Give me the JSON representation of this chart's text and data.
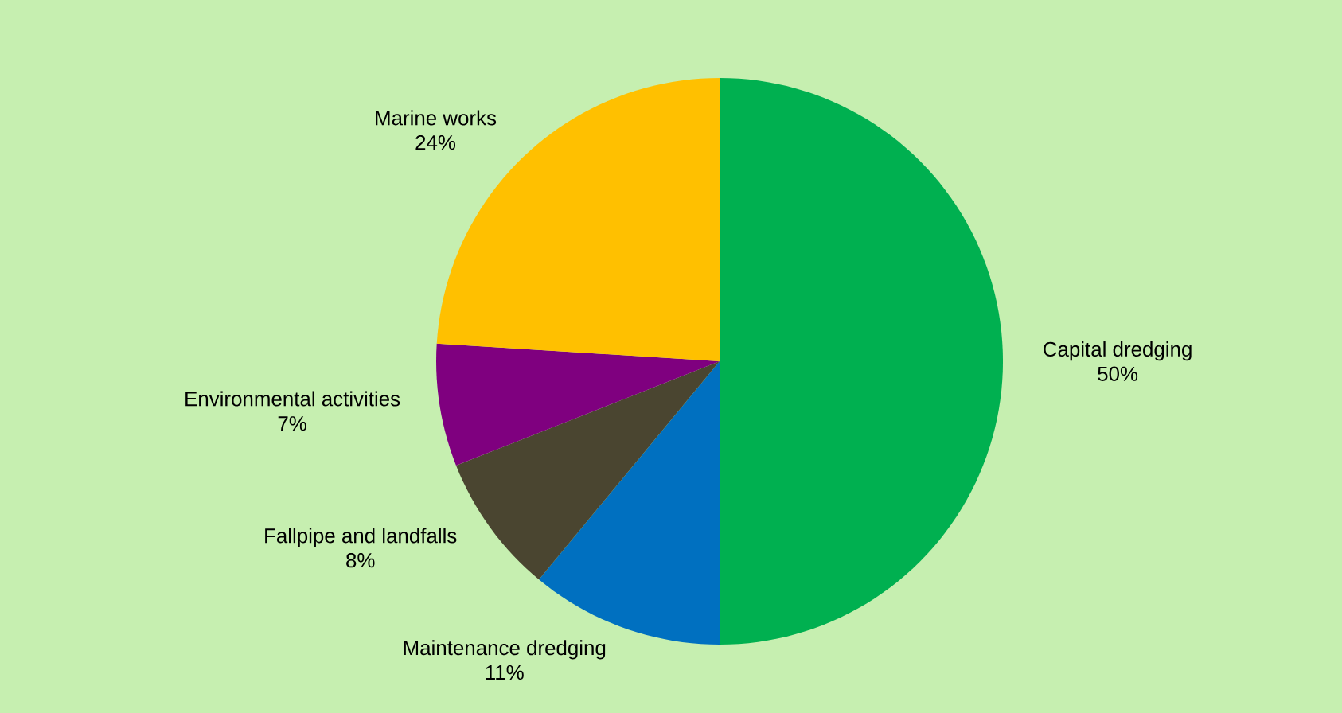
{
  "chart_data": {
    "type": "pie",
    "categories": [
      "Capital dredging",
      "Maintenance dredging",
      "Fallpipe and landfalls",
      "Environmental activities",
      "Marine works"
    ],
    "values": [
      50,
      11,
      8,
      7,
      24
    ],
    "value_labels": [
      "50%",
      "11%",
      "8%",
      "7%",
      "24%"
    ],
    "colors": [
      "#00b050",
      "#0070c0",
      "#4a4530",
      "#7f007f",
      "#ffc000"
    ]
  }
}
